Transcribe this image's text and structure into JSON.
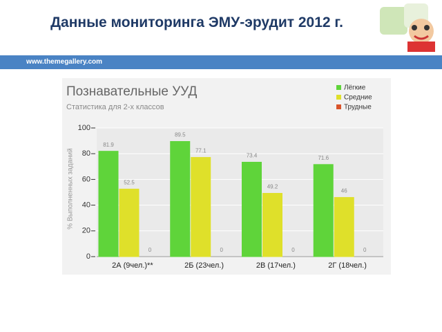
{
  "slide": {
    "title": "Данные мониторинга ЭМУ-эрудит 2012 г.",
    "url": "www.themegallery.com"
  },
  "chart_data": {
    "type": "bar",
    "title": "Познавательные УУД",
    "subtitle": "Статистика для 2-х классов",
    "y_label": "% Выполненных заданий",
    "categories": [
      "2А (9чел.)**",
      "2Б (23чел.)",
      "2В (17чел.)",
      "2Г (18чел.)"
    ],
    "series": [
      {
        "name": "Лёгкие",
        "color": "#5fd43a",
        "values": [
          81.9,
          89.5,
          73.4,
          71.6
        ]
      },
      {
        "name": "Средние",
        "color": "#dfe02a",
        "values": [
          52.5,
          77.1,
          49.2,
          46
        ]
      },
      {
        "name": "Трудные",
        "color": "#d9542b",
        "values": [
          0,
          0,
          0,
          0
        ]
      }
    ],
    "ylim": [
      0,
      100
    ],
    "yticks": [
      0,
      20,
      40,
      60,
      80,
      100
    ],
    "grid": true,
    "legend": "top-right"
  }
}
